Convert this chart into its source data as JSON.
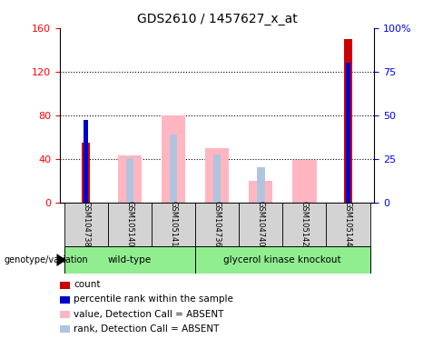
{
  "title": "GDS2610 / 1457627_x_at",
  "samples": [
    "GSM104738",
    "GSM105140",
    "GSM105141",
    "GSM104736",
    "GSM104740",
    "GSM105142",
    "GSM105144"
  ],
  "ylim_left": [
    0,
    160
  ],
  "ylim_right": [
    0,
    100
  ],
  "yticks_left": [
    0,
    40,
    80,
    120,
    160
  ],
  "yticks_right": [
    0,
    25,
    50,
    75,
    100
  ],
  "yticklabels_right": [
    "0",
    "25",
    "50",
    "75",
    "100%"
  ],
  "count_color": "#CC0000",
  "percentile_color": "#0000CC",
  "absent_value_color": "#FFB6C1",
  "absent_rank_color": "#B0C4DE",
  "data": {
    "GSM104738": {
      "count": 55,
      "percentile": 47,
      "absent_value": null,
      "absent_rank": null
    },
    "GSM105140": {
      "count": null,
      "percentile": null,
      "absent_value": 43,
      "absent_rank": 41
    },
    "GSM105141": {
      "count": null,
      "percentile": null,
      "absent_value": 80,
      "absent_rank": 62
    },
    "GSM104736": {
      "count": null,
      "percentile": null,
      "absent_value": 50,
      "absent_rank": 44
    },
    "GSM104740": {
      "count": null,
      "percentile": null,
      "absent_value": 20,
      "absent_rank": 32
    },
    "GSM105142": {
      "count": null,
      "percentile": null,
      "absent_value": 39,
      "absent_rank": null
    },
    "GSM105144": {
      "count": 150,
      "percentile": 80,
      "absent_value": null,
      "absent_rank": null
    }
  },
  "legend_items": [
    {
      "label": "count",
      "color": "#CC0000"
    },
    {
      "label": "percentile rank within the sample",
      "color": "#0000CC"
    },
    {
      "label": "value, Detection Call = ABSENT",
      "color": "#FFB6C1"
    },
    {
      "label": "rank, Detection Call = ABSENT",
      "color": "#B0C4DE"
    }
  ],
  "wt_samples": 3,
  "gk_samples": 4
}
